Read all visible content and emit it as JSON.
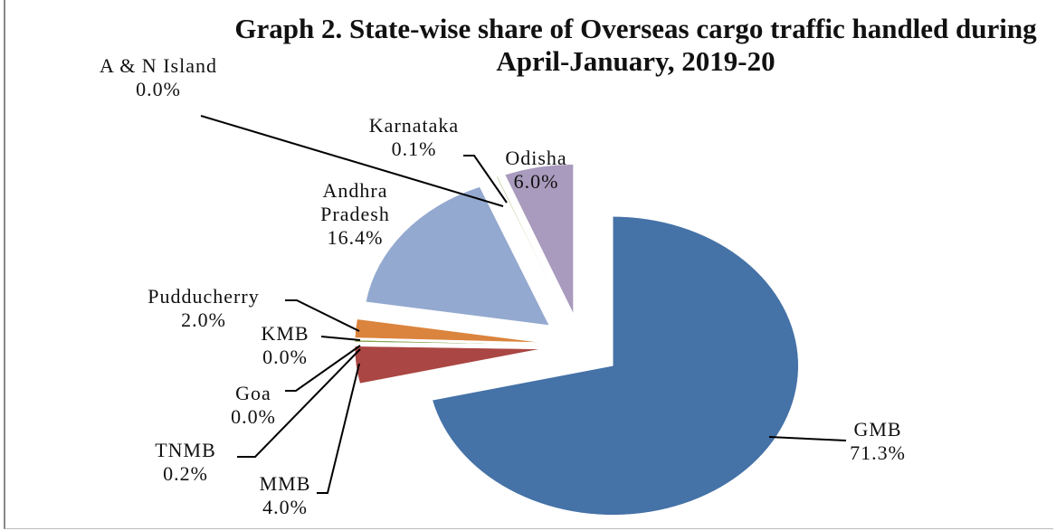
{
  "chart_data": {
    "type": "pie",
    "title": "Graph 2. State-wise share of Overseas cargo traffic handled during April-January, 2019-20",
    "categories": [
      "GMB",
      "MMB",
      "TNMB",
      "Goa",
      "KMB",
      "Pudducherry",
      "Andhra Pradesh",
      "A & N Island",
      "Karnataka",
      "Odisha"
    ],
    "values": [
      71.3,
      4.0,
      0.2,
      0.0,
      0.0,
      2.0,
      16.4,
      0.0,
      0.1,
      6.0
    ],
    "value_labels": [
      "71.3%",
      "4.0%",
      "0.2%",
      "0.0%",
      "0.0%",
      "2.0%",
      "16.4%",
      "0.0%",
      "0.1%",
      "6.0%"
    ],
    "colors": [
      "#4572a7",
      "#aa4643",
      "#89a54e",
      "#71588f",
      "#4198af",
      "#db843d",
      "#93a9cf",
      "#d19392",
      "#b9cd96",
      "#a99bbd"
    ]
  }
}
